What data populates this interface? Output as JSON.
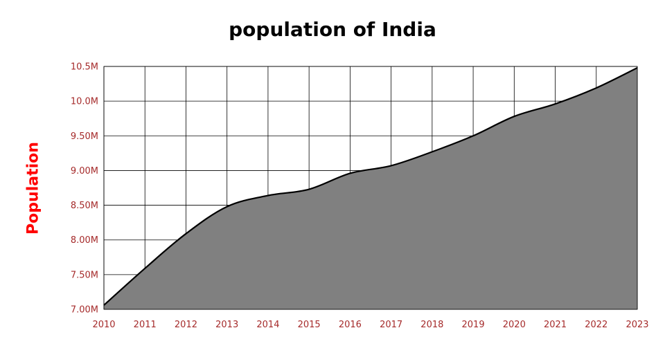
{
  "colors": {
    "area_fill": "#808080",
    "line": "#000000",
    "grid": "#000000",
    "tick_label": "#a52a2a",
    "axis_title": "#ff0000",
    "title": "#000000"
  },
  "chart_data": {
    "type": "area",
    "title": "population of India",
    "xlabel": "",
    "ylabel": "Population",
    "x": [
      2010,
      2011,
      2012,
      2013,
      2014,
      2015,
      2016,
      2017,
      2018,
      2019,
      2020,
      2021,
      2022,
      2023
    ],
    "x_tick_labels": [
      "2010",
      "2011",
      "2012",
      "2013",
      "2014",
      "2015",
      "2016",
      "2017",
      "2018",
      "2019",
      "2020",
      "2021",
      "2022",
      "2023"
    ],
    "series": [
      {
        "values": [
          7.06,
          7.59,
          8.09,
          8.48,
          8.64,
          8.73,
          8.96,
          9.07,
          9.27,
          9.5,
          9.78,
          9.96,
          10.19,
          10.48
        ]
      }
    ],
    "y_unit": "millions",
    "ylim": [
      7.0,
      10.5
    ],
    "y_ticks": [
      7.0,
      7.5,
      8.0,
      8.5,
      9.0,
      9.5,
      10.0,
      10.5
    ],
    "y_tick_labels": [
      "7.00M",
      "7.50M",
      "8.00M",
      "8.50M",
      "9.00M",
      "9.50M",
      "10.0M",
      "10.5M"
    ],
    "grid": true,
    "legend": "none",
    "curve": "smooth"
  }
}
